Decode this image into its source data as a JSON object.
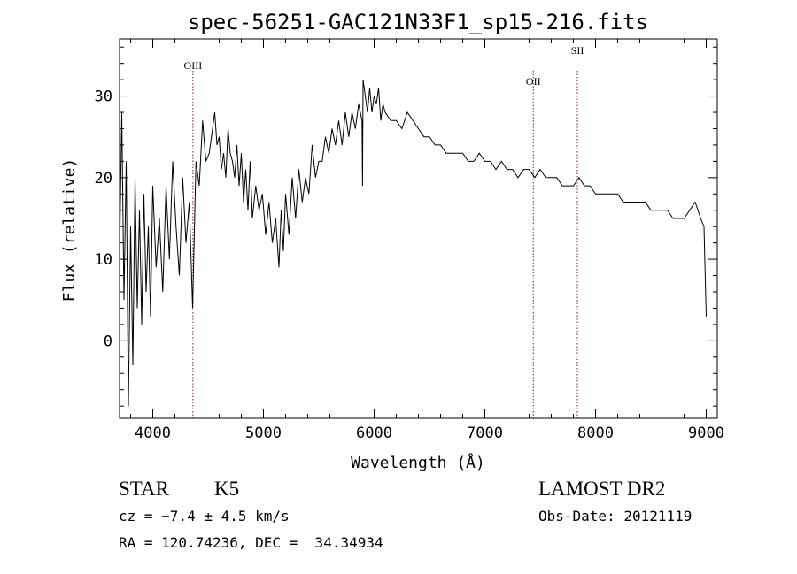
{
  "chart_data": {
    "type": "line",
    "title": "spec-56251-GAC121N33F1_sp15-216.fits",
    "xlabel": "Wavelength (Å)",
    "ylabel": "Flux (relative)",
    "xlim": [
      3700,
      9100
    ],
    "ylim": [
      -9.5,
      37
    ],
    "x_ticks": [
      "4000",
      "5000",
      "6000",
      "7000",
      "8000",
      "9000"
    ],
    "y_ticks": [
      "0",
      "10",
      "20",
      "30"
    ],
    "x_tick_values": [
      4000,
      5000,
      6000,
      7000,
      8000,
      9000
    ],
    "y_tick_values": [
      0,
      10,
      20,
      30
    ],
    "series": [
      {
        "x": [
          3700,
          3720,
          3740,
          3760,
          3780,
          3800,
          3820,
          3840,
          3860,
          3880,
          3900,
          3920,
          3940,
          3960,
          3980,
          4000,
          4030,
          4060,
          4090,
          4120,
          4150,
          4180,
          4210,
          4240,
          4270,
          4300,
          4330,
          4360,
          4390,
          4420,
          4450,
          4480,
          4510,
          4540,
          4560,
          4580,
          4600,
          4620,
          4640,
          4660,
          4680,
          4700,
          4720,
          4740,
          4760,
          4780,
          4800,
          4820,
          4840,
          4860,
          4880,
          4900,
          4930,
          4960,
          4990,
          5020,
          5050,
          5080,
          5110,
          5140,
          5160,
          5180,
          5200,
          5230,
          5260,
          5290,
          5320,
          5350,
          5380,
          5410,
          5440,
          5470,
          5500,
          5530,
          5560,
          5590,
          5620,
          5650,
          5680,
          5710,
          5740,
          5770,
          5800,
          5830,
          5860,
          5890,
          5895,
          5900,
          5920,
          5940,
          5960,
          5980,
          6000,
          6020,
          6040,
          6060,
          6080,
          6100,
          6150,
          6200,
          6250,
          6300,
          6350,
          6400,
          6450,
          6500,
          6550,
          6600,
          6650,
          6700,
          6750,
          6800,
          6850,
          6900,
          6950,
          7000,
          7050,
          7100,
          7150,
          7200,
          7250,
          7300,
          7350,
          7400,
          7450,
          7500,
          7550,
          7600,
          7650,
          7700,
          7750,
          7800,
          7850,
          7900,
          7950,
          8000,
          8050,
          8100,
          8150,
          8200,
          8250,
          8300,
          8350,
          8400,
          8450,
          8500,
          8550,
          8600,
          8650,
          8700,
          8750,
          8800,
          8850,
          8900,
          8950,
          8980,
          9000
        ],
        "y": [
          10,
          28,
          5,
          22,
          -8,
          14,
          -3,
          20,
          4,
          16,
          2,
          18,
          6,
          14,
          3,
          19,
          9,
          15,
          6,
          19,
          10,
          22,
          14,
          8,
          20,
          12,
          17,
          4,
          22,
          19,
          27,
          22,
          23,
          26,
          28,
          24,
          25,
          21,
          23,
          20,
          26,
          23,
          22,
          20,
          24,
          19,
          23,
          17,
          21,
          16,
          22,
          15,
          19,
          16,
          18,
          13,
          17,
          12,
          15,
          9,
          16,
          11,
          18,
          13,
          20,
          15,
          21,
          17,
          20,
          18,
          24,
          20,
          22,
          22,
          25,
          23,
          26,
          24,
          27,
          24,
          28,
          25,
          28,
          26,
          29,
          27,
          19,
          32,
          30,
          28,
          31,
          28,
          30,
          29,
          31,
          27,
          29,
          28,
          27,
          27,
          26,
          28,
          27,
          26,
          25,
          25,
          24,
          24,
          23,
          23,
          23,
          23,
          22,
          22,
          23,
          22,
          22,
          21,
          22,
          21,
          21,
          20,
          21,
          21,
          20,
          21,
          20,
          20,
          20,
          19,
          19,
          19,
          20,
          19,
          19,
          18,
          18,
          18,
          18,
          18,
          17,
          17,
          17,
          17,
          17,
          16,
          16,
          16,
          16,
          15,
          15,
          15,
          16,
          17,
          15,
          14,
          3
        ]
      }
    ],
    "annotations": [
      {
        "label": "OIII",
        "x": 4363
      },
      {
        "label": "OII",
        "x": 7438
      },
      {
        "label": "SII",
        "x": 7836
      }
    ]
  },
  "info": {
    "object_class": "STAR",
    "subclass": "K5",
    "survey": "LAMOST DR2",
    "redshift": "cz = −7.4 ± 4.5 km/s",
    "obs_date": "Obs-Date: 20121119",
    "coords": "RA = 120.74236, DEC =  34.34934"
  }
}
